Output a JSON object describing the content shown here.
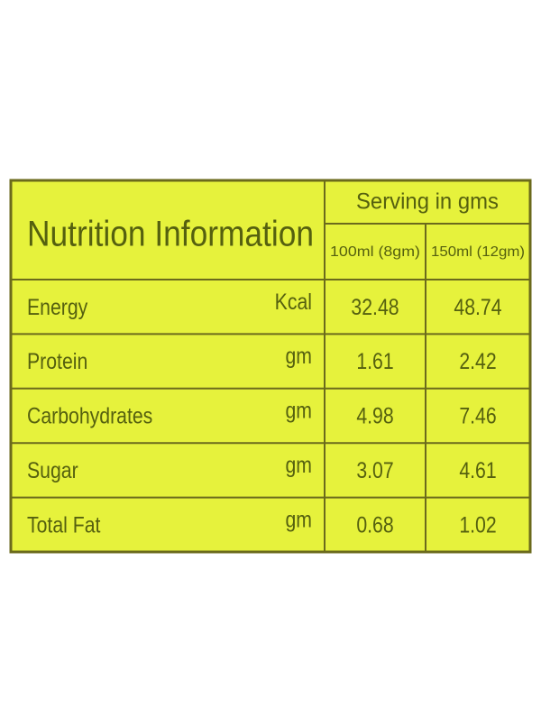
{
  "table": {
    "title": "Nutrition Information",
    "group_header": "Serving in gms",
    "columns": [
      "100ml (8gm)",
      "150ml (12gm)"
    ],
    "rows": [
      [
        "Energy",
        "Kcal",
        32.48,
        48.74
      ],
      [
        "Protein",
        "gm",
        1.61,
        2.42
      ],
      [
        "Carbohydrates",
        "gm",
        4.98,
        7.46
      ],
      [
        "Sugar",
        "gm",
        3.07,
        4.61
      ],
      [
        "Total Fat",
        "gm",
        0.68,
        1.02
      ]
    ]
  }
}
